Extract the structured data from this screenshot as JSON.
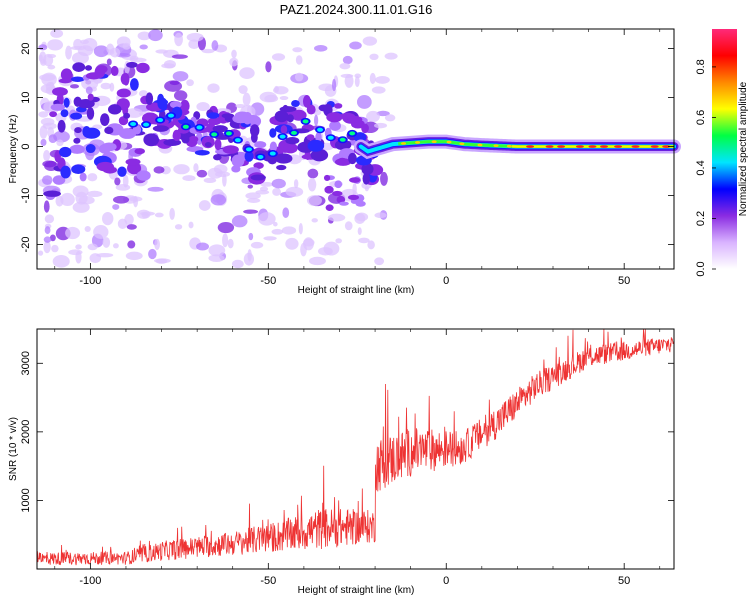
{
  "title": "PAZ1.2024.300.11.01.G16",
  "chart_data": [
    {
      "type": "heatmap",
      "xlabel": "Height of straight line (km)",
      "ylabel": "Frequency (Hz)",
      "xlim": [
        -115,
        64
      ],
      "ylim": [
        -25,
        24
      ],
      "xticks": [
        -100,
        -50,
        0,
        50
      ],
      "yticks": [
        20,
        10,
        0,
        -10,
        -20
      ],
      "colorbar": {
        "label": "Normalized spectral amplitude",
        "range": [
          0,
          0.95
        ],
        "ticks": [
          0.0,
          0.2,
          0.4,
          0.6,
          0.8
        ],
        "colors": [
          "#ffffff",
          "#d9b3ff",
          "#8a2be2",
          "#0000ff",
          "#00e5ff",
          "#00ff44",
          "#ffff00",
          "#ff8800",
          "#ff0000",
          "#ff2a7a"
        ]
      },
      "ridge_frequency_hz": [
        {
          "x": -110,
          "y": 0
        },
        {
          "x": -105,
          "y": 5
        },
        {
          "x": -95,
          "y": 4
        },
        {
          "x": -85,
          "y": 6
        },
        {
          "x": -78,
          "y": 5
        },
        {
          "x": -70,
          "y": 3
        },
        {
          "x": -62,
          "y": 2
        },
        {
          "x": -55,
          "y": 0
        },
        {
          "x": -50,
          "y": -2
        },
        {
          "x": -42,
          "y": 4
        },
        {
          "x": -35,
          "y": 3
        },
        {
          "x": -28,
          "y": 2
        },
        {
          "x": -22,
          "y": -1
        },
        {
          "x": -15,
          "y": 0.5
        },
        {
          "x": -5,
          "y": 1
        },
        {
          "x": 0,
          "y": 1
        },
        {
          "x": 5,
          "y": 0.5
        },
        {
          "x": 10,
          "y": 0.3
        },
        {
          "x": 20,
          "y": 0
        },
        {
          "x": 40,
          "y": 0
        },
        {
          "x": 64,
          "y": 0
        }
      ]
    },
    {
      "type": "line",
      "xlabel": "Height of straight line (km)",
      "ylabel": "SNR (10 * v/v)",
      "xlim": [
        -115,
        64
      ],
      "ylim": [
        0,
        3500
      ],
      "xticks": [
        -100,
        -50,
        0,
        50
      ],
      "yticks": [
        1000,
        2000,
        3000
      ],
      "color": "#ee3333",
      "envelope": [
        {
          "x": -115,
          "base": 120,
          "noise": 120
        },
        {
          "x": -90,
          "base": 130,
          "noise": 120
        },
        {
          "x": -80,
          "base": 220,
          "noise": 180
        },
        {
          "x": -60,
          "base": 320,
          "noise": 220
        },
        {
          "x": -45,
          "base": 420,
          "noise": 300
        },
        {
          "x": -35,
          "base": 500,
          "noise": 380
        },
        {
          "x": -20,
          "base": 550,
          "noise": 300
        },
        {
          "x": -19,
          "base": 1400,
          "noise": 500
        },
        {
          "x": -10,
          "base": 1600,
          "noise": 450
        },
        {
          "x": 5,
          "base": 1700,
          "noise": 300
        },
        {
          "x": 15,
          "base": 2100,
          "noise": 300
        },
        {
          "x": 25,
          "base": 2600,
          "noise": 250
        },
        {
          "x": 40,
          "base": 3050,
          "noise": 200
        },
        {
          "x": 64,
          "base": 3250,
          "noise": 150
        }
      ]
    }
  ]
}
